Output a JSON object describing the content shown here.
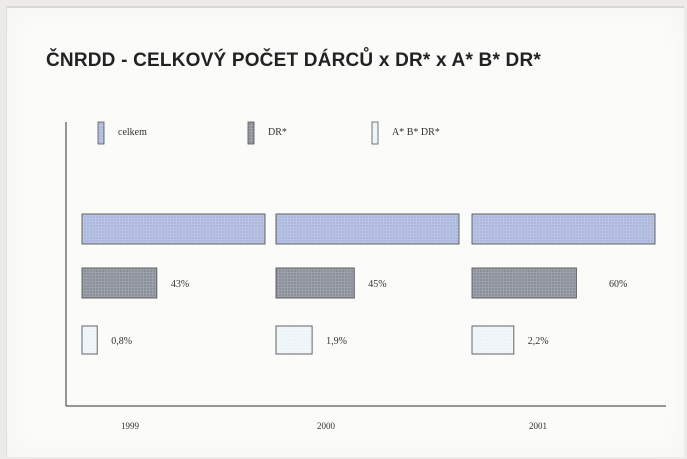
{
  "chart_data": {
    "type": "bar",
    "title": "ČNRDD - CELKOVÝ POČET DÁRCŮ x DR* x A* B* DR*",
    "categories": [
      "1999",
      "2000",
      "2001"
    ],
    "series": [
      {
        "name": "celkem",
        "values": [
          100,
          100,
          100
        ],
        "labels": [
          "",
          "",
          ""
        ],
        "color": "#b4bee0"
      },
      {
        "name": "DR*",
        "values": [
          43,
          45,
          60
        ],
        "labels": [
          "43%",
          "45%",
          "60%"
        ],
        "color": "#9498a4"
      },
      {
        "name": "A* B* DR*",
        "values": [
          0.8,
          1.9,
          2.2
        ],
        "labels": [
          "0,8%",
          "1,9%",
          "2,2%"
        ],
        "color": "#eef6fa"
      }
    ],
    "orientation": "horizontal",
    "legend_position": "top",
    "grid": false
  }
}
